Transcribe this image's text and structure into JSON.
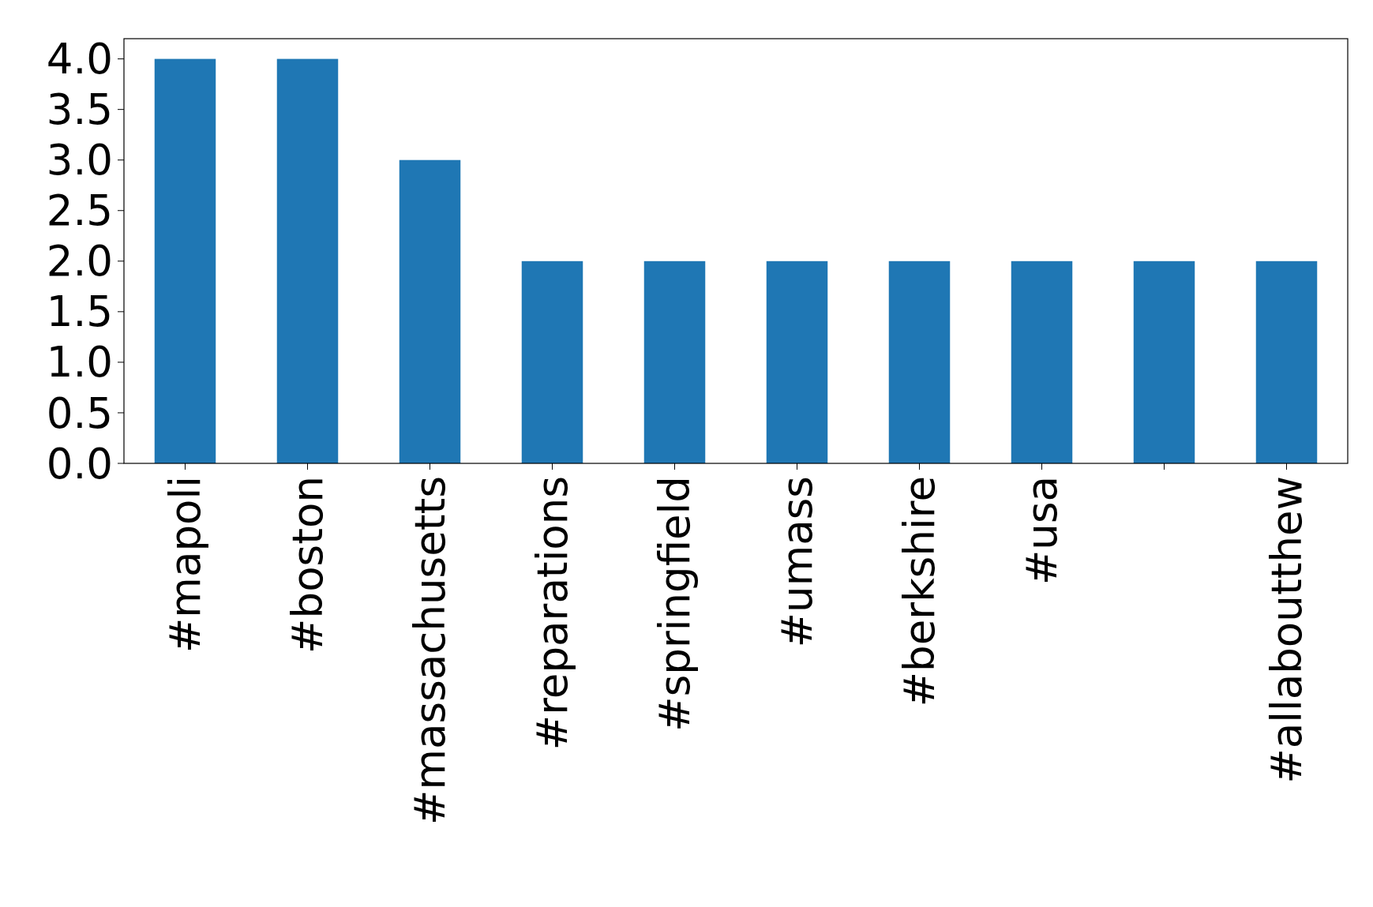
{
  "chart_data": {
    "type": "bar",
    "categories": [
      "#mapoli",
      "#boston",
      "#massachusetts",
      "#reparations",
      "#springfield",
      "#umass",
      "#berkshire",
      "#usa",
      null,
      "#allaboutthew"
    ],
    "values": [
      4,
      4,
      3,
      2,
      2,
      2,
      2,
      2,
      2,
      2
    ],
    "color": "#1f77b4",
    "ylim": [
      0,
      4.2
    ],
    "yticks": [
      {
        "value": 0,
        "label": "0.0"
      },
      {
        "value": 0.5,
        "label": "0.5"
      },
      {
        "value": 1,
        "label": "1.0"
      },
      {
        "value": 1.5,
        "label": "1.5"
      },
      {
        "value": 2,
        "label": "2.0"
      },
      {
        "value": 2.5,
        "label": "2.5"
      },
      {
        "value": 3,
        "label": "3.0"
      },
      {
        "value": 3.5,
        "label": "3.5"
      },
      {
        "value": 4,
        "label": "4.0"
      }
    ],
    "grid": false
  }
}
